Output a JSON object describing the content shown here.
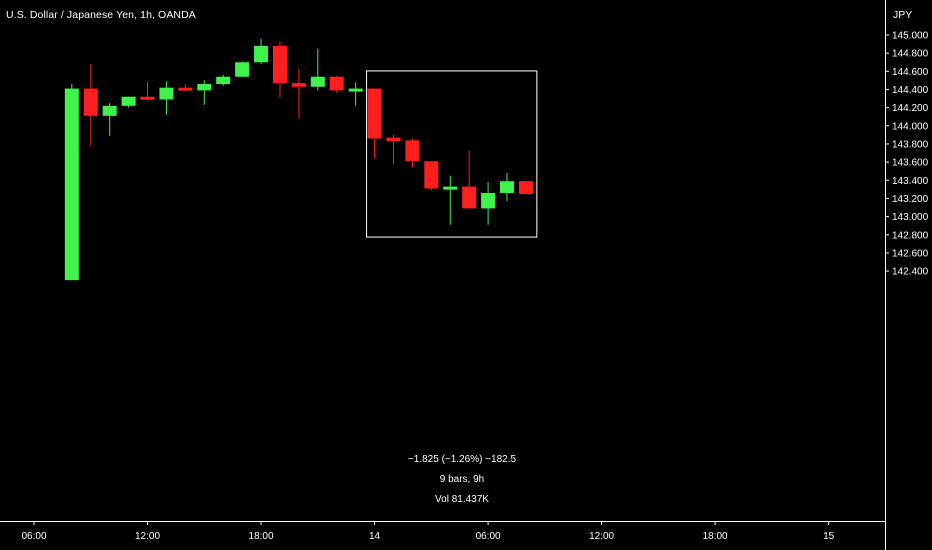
{
  "header": {
    "title": "U.S. Dollar / Japanese Yen, 1h, OANDA",
    "currency": "JPY"
  },
  "measure": {
    "change": "−1.825 (−1.26%) −182.5",
    "bars": "9 bars, 9h",
    "volume": "Vol 81.437K"
  },
  "colors": {
    "background": "#000000",
    "up": "#3ff24c",
    "down": "#ff1f1f",
    "axis_line": "#ffffff",
    "text": "#ffffff"
  },
  "chart_data": {
    "type": "candlestick",
    "title": "U.S. Dollar / Japanese Yen, 1h, OANDA",
    "ylabel": "JPY",
    "ylim": [
      142.3,
      145.15
    ],
    "y_ticks": [
      "145.000",
      "144.800",
      "144.600",
      "144.400",
      "144.200",
      "144.000",
      "143.800",
      "143.600",
      "143.400",
      "143.200",
      "143.000",
      "142.800",
      "142.600",
      "142.400"
    ],
    "x_ticks": [
      "06:00",
      "12:00",
      "18:00",
      "14",
      "06:00",
      "12:00",
      "18:00",
      "15"
    ],
    "x_tick_hours": [
      6,
      12,
      18,
      24,
      30,
      36,
      42,
      48
    ],
    "candles": [
      {
        "t": 8,
        "o": 142.3,
        "h": 144.46,
        "l": 142.3,
        "c": 144.41
      },
      {
        "t": 9,
        "o": 144.41,
        "h": 144.68,
        "l": 143.78,
        "c": 144.11
      },
      {
        "t": 10,
        "o": 144.11,
        "h": 144.25,
        "l": 143.89,
        "c": 144.22
      },
      {
        "t": 11,
        "o": 144.22,
        "h": 144.32,
        "l": 144.2,
        "c": 144.32
      },
      {
        "t": 12,
        "o": 144.32,
        "h": 144.49,
        "l": 144.28,
        "c": 144.3
      },
      {
        "t": 13,
        "o": 144.29,
        "h": 144.49,
        "l": 144.12,
        "c": 144.42
      },
      {
        "t": 14,
        "o": 144.42,
        "h": 144.46,
        "l": 144.38,
        "c": 144.39
      },
      {
        "t": 15,
        "o": 144.39,
        "h": 144.5,
        "l": 144.23,
        "c": 144.46
      },
      {
        "t": 16,
        "o": 144.46,
        "h": 144.56,
        "l": 144.44,
        "c": 144.54
      },
      {
        "t": 17,
        "o": 144.54,
        "h": 144.71,
        "l": 144.54,
        "c": 144.7
      },
      {
        "t": 18,
        "o": 144.7,
        "h": 144.96,
        "l": 144.68,
        "c": 144.88
      },
      {
        "t": 19,
        "o": 144.88,
        "h": 144.93,
        "l": 144.31,
        "c": 144.47
      },
      {
        "t": 20,
        "o": 144.47,
        "h": 144.63,
        "l": 144.08,
        "c": 144.43
      },
      {
        "t": 21,
        "o": 144.43,
        "h": 144.85,
        "l": 144.39,
        "c": 144.54
      },
      {
        "t": 22,
        "o": 144.54,
        "h": 144.55,
        "l": 144.36,
        "c": 144.39
      },
      {
        "t": 23,
        "o": 144.39,
        "h": 144.48,
        "l": 144.22,
        "c": 144.41
      },
      {
        "t": 24,
        "o": 144.41,
        "h": 144.41,
        "l": 143.64,
        "c": 143.86
      },
      {
        "t": 25,
        "o": 143.87,
        "h": 143.9,
        "l": 143.58,
        "c": 143.83
      },
      {
        "t": 26,
        "o": 143.84,
        "h": 143.86,
        "l": 143.54,
        "c": 143.61
      },
      {
        "t": 27,
        "o": 143.61,
        "h": 143.61,
        "l": 143.29,
        "c": 143.31
      },
      {
        "t": 28,
        "o": 143.3,
        "h": 143.45,
        "l": 142.91,
        "c": 143.33
      },
      {
        "t": 29,
        "o": 143.33,
        "h": 143.73,
        "l": 143.09,
        "c": 143.09
      },
      {
        "t": 30,
        "o": 143.09,
        "h": 143.38,
        "l": 142.91,
        "c": 143.26
      },
      {
        "t": 31,
        "o": 143.26,
        "h": 143.48,
        "l": 143.17,
        "c": 143.39
      },
      {
        "t": 32,
        "o": 143.39,
        "h": 143.39,
        "l": 143.25,
        "c": 143.25
      }
    ],
    "measure_range": {
      "from_t": 24,
      "to_t": 33,
      "from_price": 142.78,
      "to_price": 144.61
    }
  }
}
